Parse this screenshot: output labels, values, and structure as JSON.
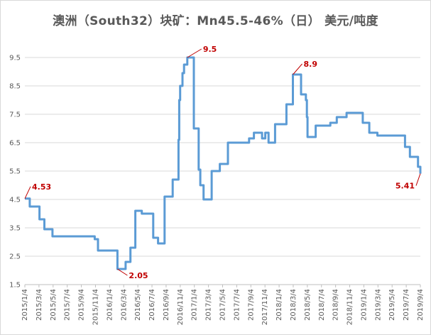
{
  "chart_data": {
    "type": "line",
    "title": "澳洲（South32）块矿：Mn45.5-46%（日） 美元/吨度",
    "xlabel": "",
    "ylabel": "",
    "ylim": [
      1.5,
      10
    ],
    "yticks": [
      1.5,
      2.5,
      3.5,
      4.5,
      5.5,
      6.5,
      7.5,
      8.5,
      9.5
    ],
    "x_range": [
      "2015/1/4",
      "2019/9/4"
    ],
    "x_tick_labels": [
      "2015/1/4",
      "2015/3/4",
      "2015/5/4",
      "2015/7/4",
      "2015/9/4",
      "2015/11/4",
      "2016/1/4",
      "2016/3/4",
      "2016/5/4",
      "2016/7/4",
      "2016/9/4",
      "2016/11/4",
      "2017/1/4",
      "2017/3/4",
      "2017/5/4",
      "2017/7/4",
      "2017/9/4",
      "2017/11/4",
      "2018/1/4",
      "2018/3/4",
      "2018/5/4",
      "2018/7/4",
      "2018/9/4",
      "2018/11/4",
      "2019/1/4",
      "2019/3/4",
      "2019/5/4",
      "2019/7/4",
      "2019/9/4"
    ],
    "grid": true,
    "line_color": "#5b9bd5",
    "annotation_color": "#c00000",
    "series": [
      {
        "points": [
          [
            "2015/1/4",
            4.53
          ],
          [
            "2015/1/25",
            4.25
          ],
          [
            "2015/3/8",
            3.8
          ],
          [
            "2015/3/29",
            3.45
          ],
          [
            "2015/5/3",
            3.2
          ],
          [
            "2015/11/1",
            3.1
          ],
          [
            "2015/11/15",
            2.7
          ],
          [
            "2016/2/7",
            2.05
          ],
          [
            "2016/3/13",
            2.3
          ],
          [
            "2016/4/3",
            2.8
          ],
          [
            "2016/4/24",
            4.1
          ],
          [
            "2016/5/22",
            4.0
          ],
          [
            "2016/7/10",
            3.15
          ],
          [
            "2016/7/31",
            2.95
          ],
          [
            "2016/8/28",
            4.6
          ],
          [
            "2016/10/2",
            5.2
          ],
          [
            "2016/10/27",
            6.6
          ],
          [
            "2016/10/30",
            8.0
          ],
          [
            "2016/11/3",
            8.5
          ],
          [
            "2016/11/13",
            8.95
          ],
          [
            "2016/11/20",
            9.25
          ],
          [
            "2016/12/4",
            9.5
          ],
          [
            "2017/1/1",
            7.0
          ],
          [
            "2017/1/22",
            5.55
          ],
          [
            "2017/1/29",
            5.0
          ],
          [
            "2017/2/12",
            4.5
          ],
          [
            "2017/3/19",
            5.5
          ],
          [
            "2017/4/23",
            5.75
          ],
          [
            "2017/5/28",
            6.5
          ],
          [
            "2017/8/27",
            6.65
          ],
          [
            "2017/9/17",
            6.85
          ],
          [
            "2017/10/22",
            6.65
          ],
          [
            "2017/11/5",
            6.85
          ],
          [
            "2017/11/19",
            6.5
          ],
          [
            "2017/12/17",
            7.15
          ],
          [
            "2018/2/4",
            7.85
          ],
          [
            "2018/3/4",
            8.9
          ],
          [
            "2018/4/8",
            8.2
          ],
          [
            "2018/4/29",
            8.0
          ],
          [
            "2018/5/3",
            7.4
          ],
          [
            "2018/5/6",
            6.7
          ],
          [
            "2018/6/10",
            7.1
          ],
          [
            "2018/8/12",
            7.2
          ],
          [
            "2018/9/9",
            7.4
          ],
          [
            "2018/10/21",
            7.55
          ],
          [
            "2018/12/30",
            7.2
          ],
          [
            "2019/1/27",
            6.85
          ],
          [
            "2019/3/3",
            6.75
          ],
          [
            "2019/6/30",
            6.35
          ],
          [
            "2019/7/21",
            6.0
          ],
          [
            "2019/8/25",
            5.65
          ],
          [
            "2019/9/4",
            5.41
          ]
        ]
      }
    ],
    "annotations": [
      {
        "label": "4.53",
        "x": "2015/1/4",
        "y": 4.53
      },
      {
        "label": "2.05",
        "x": "2016/2/7",
        "y": 2.05
      },
      {
        "label": "9.5",
        "x": "2016/12/4",
        "y": 9.5
      },
      {
        "label": "8.9",
        "x": "2018/3/4",
        "y": 8.9
      },
      {
        "label": "5.41",
        "x": "2019/9/4",
        "y": 5.41
      }
    ]
  }
}
